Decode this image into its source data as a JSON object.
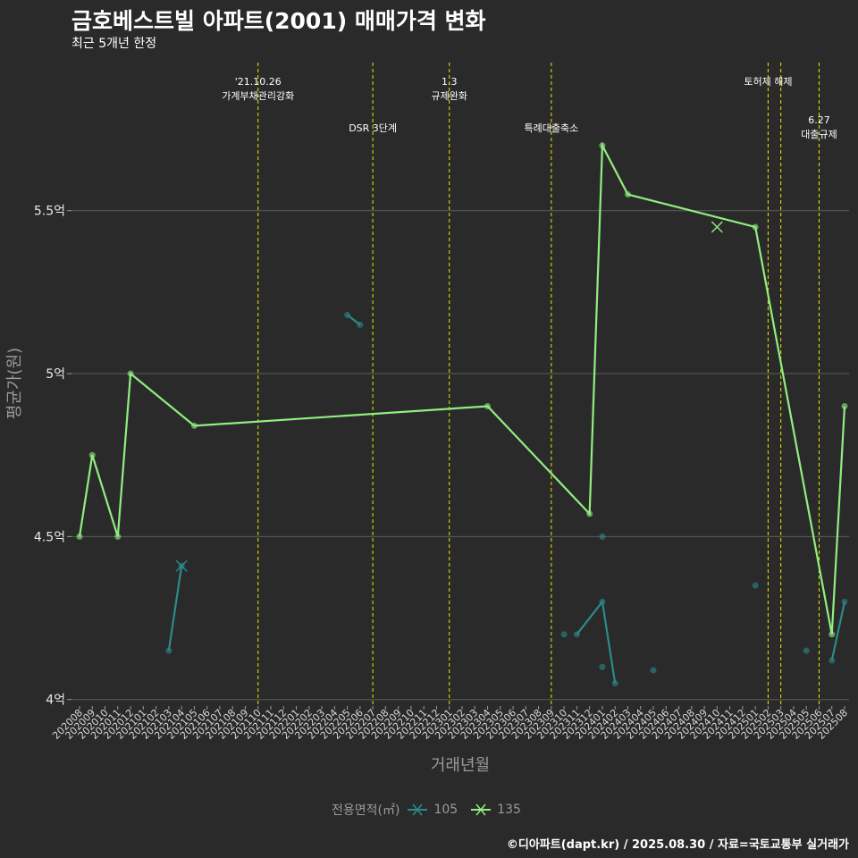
{
  "title": "금호베스트빌 아파트(2001) 매매가격 변화",
  "subtitle": "최근 5개년 한정",
  "caption": "©디아파트(dapt.kr) / 2025.08.30 / 자료=국토교통부 실거래가",
  "chart_data": {
    "type": "line",
    "title": "금호베스트빌 아파트(2001) 매매가격 변화",
    "xlabel": "거래년월",
    "ylabel": "평균가(원)",
    "ylim": [
      3.98,
      5.96
    ],
    "y_ticks": [
      4.0,
      4.5,
      5.0,
      5.5
    ],
    "y_tick_labels": [
      "4억",
      "4.5억",
      "5억",
      "5.5억"
    ],
    "grid": true,
    "legend_title": "전용면적(㎡)",
    "legend_position": "bottom",
    "categories": [
      "202008",
      "202009",
      "202010",
      "202011",
      "202012",
      "202101",
      "202102",
      "202103",
      "202104",
      "202105",
      "202106",
      "202107",
      "202108",
      "202109",
      "202110",
      "202111",
      "202112",
      "202201",
      "202202",
      "202203",
      "202204",
      "202205",
      "202206",
      "202207",
      "202208",
      "202209",
      "202210",
      "202211",
      "202212",
      "202301",
      "202302",
      "202303",
      "202304",
      "202305",
      "202306",
      "202307",
      "202308",
      "202309",
      "202310",
      "202311",
      "202312",
      "202401",
      "202402",
      "202403",
      "202404",
      "202405",
      "202406",
      "202407",
      "202408",
      "202409",
      "202410",
      "202411",
      "202412",
      "202501",
      "202502",
      "202503",
      "202504",
      "202505",
      "202506",
      "202507",
      "202508"
    ],
    "series": [
      {
        "name": "105",
        "color": "#2a8b8b",
        "line_segments": [
          [
            [
              "202103",
              4.15
            ],
            [
              "202104",
              4.41
            ]
          ],
          [
            [
              "202205",
              5.18
            ],
            [
              "202206",
              5.15
            ]
          ],
          [
            [
              "202311",
              4.2
            ],
            [
              "202401",
              4.3
            ],
            [
              "202402",
              4.05
            ]
          ],
          [
            [
              "202507",
              4.12
            ],
            [
              "202508",
              4.3
            ]
          ]
        ],
        "extra_points": [
          [
            "202310",
            4.2
          ],
          [
            "202401",
            4.1
          ],
          [
            "202401",
            4.5
          ],
          [
            "202405",
            4.09
          ],
          [
            "202501",
            4.35
          ],
          [
            "202505",
            4.15
          ]
        ],
        "cancelled_points": [
          [
            "202104",
            4.41
          ]
        ]
      },
      {
        "name": "135",
        "color": "#90ee80",
        "line_segments": [
          [
            [
              "202008",
              4.5
            ],
            [
              "202009",
              4.75
            ],
            [
              "202011",
              4.5
            ],
            [
              "202012",
              5.0
            ],
            [
              "202105",
              4.84
            ],
            [
              "202304",
              4.9
            ],
            [
              "202312",
              4.57
            ],
            [
              "202401",
              5.7
            ],
            [
              "202403",
              5.55
            ],
            [
              "202501",
              5.45
            ],
            [
              "202507",
              4.2
            ],
            [
              "202508",
              4.9
            ]
          ]
        ],
        "extra_points": [],
        "cancelled_points": [
          [
            "202410",
            5.45
          ]
        ]
      }
    ],
    "events": [
      {
        "month": "202110",
        "lines": [
          "'21.10.26",
          "가계부채관리강화"
        ],
        "row": 1
      },
      {
        "month": "202207",
        "lines": [
          "DSR 3단계"
        ],
        "row": 2
      },
      {
        "month": "202301",
        "lines": [
          "1.3",
          "규제완화"
        ],
        "row": 1
      },
      {
        "month": "202309",
        "lines": [
          "특례대출축소"
        ],
        "row": 2
      },
      {
        "month": "202502",
        "lines": [
          "토허제 해제"
        ],
        "row": 1
      },
      {
        "month": "202503",
        "lines": [],
        "row": 0
      },
      {
        "month": "202506",
        "lines": [
          "6.27",
          "대출규제"
        ],
        "row": 3
      }
    ],
    "event_line_color": "#e8e800"
  }
}
